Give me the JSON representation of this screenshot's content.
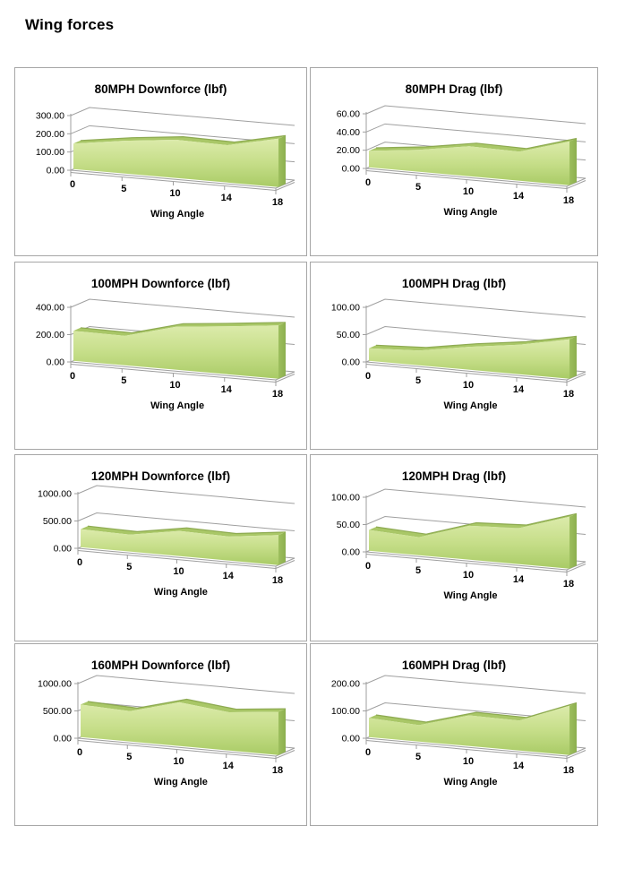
{
  "page": {
    "title": "Wing forces"
  },
  "palette": {
    "area_top": "#dcebab",
    "area_mid": "#c6de89",
    "area_bottom": "#a9cb66",
    "area_band": "#a9c767",
    "area_edge": "#86a448",
    "area_side": "#9dbf5e",
    "area_side_dark": "#8caf4e",
    "gridline": "#9f9f9f",
    "panel_border": "#a6a6a6",
    "text": "#000000"
  },
  "chart_data": [
    {
      "type": "area",
      "title": "80MPH Downforce (lbf)",
      "xlabel": "Wing Angle",
      "categories": [
        0,
        5,
        10,
        14,
        18
      ],
      "values": [
        140,
        180,
        210,
        205,
        265
      ],
      "ylim": [
        0,
        300
      ],
      "yticks": [
        0,
        100,
        200,
        300
      ],
      "ytick_labels": [
        "0.00",
        "100.00",
        "200.00",
        "300.00"
      ],
      "grid": true,
      "legend": "none"
    },
    {
      "type": "area",
      "title": "80MPH Drag (lbf)",
      "xlabel": "Wing Angle",
      "categories": [
        0,
        5,
        10,
        14,
        18
      ],
      "values": [
        18,
        24,
        33,
        32,
        48
      ],
      "ylim": [
        0,
        60
      ],
      "yticks": [
        0,
        20,
        40,
        60
      ],
      "ytick_labels": [
        "0.00",
        "20.00",
        "40.00",
        "60.00"
      ],
      "grid": true,
      "legend": "none"
    },
    {
      "type": "area",
      "title": "100MPH Downforce (lbf)",
      "xlabel": "Wing Angle",
      "categories": [
        0,
        5,
        10,
        14,
        18
      ],
      "values": [
        220,
        215,
        315,
        350,
        390
      ],
      "ylim": [
        0,
        400
      ],
      "yticks": [
        0,
        200,
        400
      ],
      "ytick_labels": [
        "0.00",
        "200.00",
        "400.00"
      ],
      "grid": true,
      "legend": "none"
    },
    {
      "type": "area",
      "title": "100MPH Drag (lbf)",
      "xlabel": "Wing Angle",
      "categories": [
        0,
        5,
        10,
        14,
        18
      ],
      "values": [
        23,
        27,
        42,
        54,
        72
      ],
      "ylim": [
        0,
        100
      ],
      "yticks": [
        0,
        50,
        100
      ],
      "ytick_labels": [
        "0.00",
        "50.00",
        "100.00"
      ],
      "grid": true,
      "legend": "none"
    },
    {
      "type": "area",
      "title": "120MPH Downforce (lbf)",
      "xlabel": "Wing Angle",
      "categories": [
        0,
        5,
        10,
        14,
        18
      ],
      "values": [
        330,
        310,
        460,
        440,
        550
      ],
      "ylim": [
        0,
        1000
      ],
      "yticks": [
        0,
        500,
        1000
      ],
      "ytick_labels": [
        "0.00",
        "500.00",
        "1000.00"
      ],
      "grid": true,
      "legend": "none"
    },
    {
      "type": "area",
      "title": "120MPH Drag (lbf)",
      "xlabel": "Wing Angle",
      "categories": [
        0,
        5,
        10,
        14,
        18
      ],
      "values": [
        38,
        33,
        62,
        66,
        95
      ],
      "ylim": [
        0,
        100
      ],
      "yticks": [
        0,
        50,
        100
      ],
      "ytick_labels": [
        "0.00",
        "50.00",
        "100.00"
      ],
      "grid": true,
      "legend": "none"
    },
    {
      "type": "area",
      "title": "160MPH Downforce (lbf)",
      "xlabel": "Wing Angle",
      "categories": [
        0,
        5,
        10,
        14,
        18
      ],
      "values": [
        595,
        555,
        800,
        700,
        790
      ],
      "ylim": [
        0,
        1000
      ],
      "yticks": [
        0,
        500,
        1000
      ],
      "ytick_labels": [
        "0.00",
        "500.00",
        "1000.00"
      ],
      "grid": true,
      "legend": "none"
    },
    {
      "type": "area",
      "title": "160MPH Drag (lbf)",
      "xlabel": "Wing Angle",
      "categories": [
        0,
        5,
        10,
        14,
        18
      ],
      "values": [
        70,
        60,
        112,
        110,
        180
      ],
      "ylim": [
        0,
        200
      ],
      "yticks": [
        0,
        100,
        200
      ],
      "ytick_labels": [
        "0.00",
        "100.00",
        "200.00"
      ],
      "grid": true,
      "legend": "none"
    }
  ]
}
